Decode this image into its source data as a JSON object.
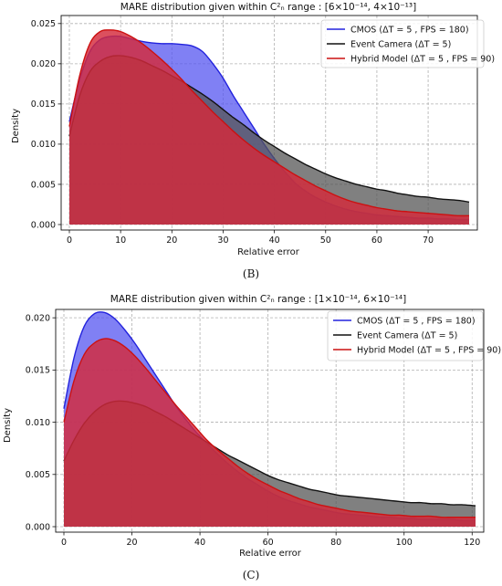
{
  "chart_data": [
    {
      "type": "area",
      "panel_label": "(B)",
      "title": "MARE distribution given within C²ₙ range : [6×10⁻¹⁴, 4×10⁻¹³]",
      "xlabel": "Relative error",
      "ylabel": "Density",
      "xlim": [
        0,
        78
      ],
      "ylim": [
        0,
        0.025
      ],
      "xticks": [
        "0",
        "10",
        "20",
        "30",
        "40",
        "50",
        "60",
        "70"
      ],
      "yticks": [
        "0.000",
        "0.005",
        "0.010",
        "0.015",
        "0.020",
        "0.025"
      ],
      "grid": true,
      "legend_position": "top-right",
      "x": [
        0,
        2,
        4,
        6,
        8,
        10,
        12,
        14,
        16,
        18,
        20,
        22,
        24,
        26,
        28,
        30,
        32,
        34,
        36,
        38,
        40,
        42,
        44,
        46,
        48,
        50,
        52,
        54,
        56,
        58,
        60,
        62,
        64,
        66,
        68,
        70,
        72,
        74,
        76,
        78
      ],
      "series": [
        {
          "name": "CMOS (ΔT = 5 , FPS = 180)",
          "color": "#2222dd",
          "fill": "#5555f0",
          "values": [
            0.0128,
            0.018,
            0.0215,
            0.023,
            0.0234,
            0.0234,
            0.0231,
            0.0228,
            0.0226,
            0.0225,
            0.0225,
            0.0224,
            0.0222,
            0.0215,
            0.02,
            0.0182,
            0.016,
            0.014,
            0.012,
            0.01,
            0.0082,
            0.0066,
            0.0052,
            0.0042,
            0.0034,
            0.0028,
            0.0023,
            0.0019,
            0.0016,
            0.0014,
            0.0012,
            0.0011,
            0.001,
            0.0009,
            0.0008,
            0.0008,
            0.0007,
            0.0007,
            0.0006,
            0.0006
          ]
        },
        {
          "name": "Event Camera (ΔT = 5)",
          "color": "#111111",
          "fill": "#555555",
          "values": [
            0.011,
            0.016,
            0.019,
            0.0203,
            0.0209,
            0.021,
            0.0208,
            0.0204,
            0.0198,
            0.0192,
            0.0185,
            0.0178,
            0.017,
            0.0162,
            0.0153,
            0.0143,
            0.0133,
            0.0124,
            0.0114,
            0.0105,
            0.0097,
            0.0089,
            0.0082,
            0.0075,
            0.0069,
            0.0063,
            0.0058,
            0.0054,
            0.005,
            0.0047,
            0.0044,
            0.0042,
            0.0039,
            0.0037,
            0.0035,
            0.0034,
            0.0032,
            0.0031,
            0.003,
            0.0028
          ]
        },
        {
          "name": "Hybrid Model (ΔT = 5 , FPS = 90)",
          "color": "#cc1111",
          "fill": "#d42a3a",
          "values": [
            0.0122,
            0.0185,
            0.0225,
            0.024,
            0.0242,
            0.024,
            0.0234,
            0.0226,
            0.0216,
            0.0205,
            0.0193,
            0.018,
            0.0166,
            0.0153,
            0.014,
            0.0128,
            0.0116,
            0.0105,
            0.0095,
            0.0086,
            0.0078,
            0.007,
            0.0062,
            0.0055,
            0.0048,
            0.0042,
            0.0036,
            0.0031,
            0.0027,
            0.0024,
            0.0021,
            0.0019,
            0.0017,
            0.0016,
            0.0015,
            0.0014,
            0.0013,
            0.0012,
            0.0011,
            0.0011
          ]
        }
      ]
    },
    {
      "type": "area",
      "panel_label": "(C)",
      "title": "MARE distribution given within C²ₙ range : [1×10⁻¹⁴, 6×10⁻¹⁴]",
      "xlabel": "Relative error",
      "ylabel": "Density",
      "xlim": [
        0,
        121
      ],
      "ylim": [
        0,
        0.02
      ],
      "xticks": [
        "0",
        "20",
        "40",
        "60",
        "80",
        "100",
        "120"
      ],
      "yticks": [
        "0.000",
        "0.005",
        "0.010",
        "0.015",
        "0.020"
      ],
      "grid": true,
      "legend_position": "top-right",
      "x": [
        0,
        3,
        6,
        9,
        12,
        15,
        18,
        21,
        24,
        27,
        30,
        33,
        36,
        39,
        42,
        45,
        48,
        51,
        54,
        57,
        60,
        63,
        66,
        69,
        72,
        75,
        78,
        81,
        84,
        87,
        90,
        93,
        96,
        99,
        102,
        105,
        108,
        111,
        114,
        117,
        121
      ],
      "series": [
        {
          "name": "CMOS (ΔT = 5 , FPS = 180)",
          "color": "#2222dd",
          "fill": "#5555f0",
          "values": [
            0.0113,
            0.0162,
            0.0192,
            0.0204,
            0.0205,
            0.0199,
            0.0188,
            0.0175,
            0.016,
            0.0145,
            0.013,
            0.0115,
            0.0102,
            0.009,
            0.008,
            0.007,
            0.0061,
            0.0053,
            0.0046,
            0.004,
            0.0034,
            0.0029,
            0.0025,
            0.0022,
            0.0019,
            0.0017,
            0.0015,
            0.0013,
            0.0012,
            0.0011,
            0.001,
            0.0009,
            0.0009,
            0.0008,
            0.0008,
            0.0007,
            0.0007,
            0.0007,
            0.0007,
            0.0006,
            0.0006
          ]
        },
        {
          "name": "Event Camera (ΔT = 5)",
          "color": "#111111",
          "fill": "#555555",
          "values": [
            0.0063,
            0.0083,
            0.0099,
            0.011,
            0.0117,
            0.012,
            0.012,
            0.0118,
            0.0115,
            0.011,
            0.0105,
            0.0099,
            0.0093,
            0.0087,
            0.0081,
            0.0075,
            0.0069,
            0.0064,
            0.0059,
            0.0054,
            0.0049,
            0.0045,
            0.0042,
            0.0039,
            0.0036,
            0.0034,
            0.0032,
            0.003,
            0.0029,
            0.0028,
            0.0027,
            0.0026,
            0.0025,
            0.0024,
            0.0023,
            0.0023,
            0.0022,
            0.0022,
            0.0021,
            0.0021,
            0.002
          ]
        },
        {
          "name": "Hybrid Model (ΔT = 5 , FPS = 90)",
          "color": "#cc1111",
          "fill": "#d42a3a",
          "values": [
            0.01,
            0.014,
            0.0165,
            0.0176,
            0.018,
            0.0178,
            0.0172,
            0.0163,
            0.0152,
            0.014,
            0.0128,
            0.0116,
            0.0105,
            0.0094,
            0.0083,
            0.0074,
            0.0066,
            0.0058,
            0.0051,
            0.0045,
            0.004,
            0.0035,
            0.0031,
            0.0027,
            0.0024,
            0.0021,
            0.0019,
            0.0017,
            0.0015,
            0.0014,
            0.0013,
            0.0012,
            0.0011,
            0.0011,
            0.001,
            0.001,
            0.001,
            0.0009,
            0.0009,
            0.0009,
            0.0009
          ]
        }
      ]
    }
  ]
}
